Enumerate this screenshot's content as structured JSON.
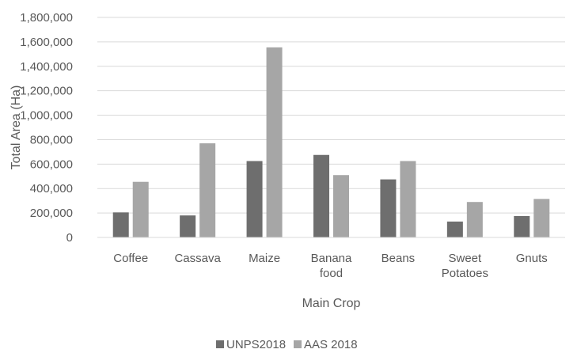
{
  "chart_data": {
    "type": "bar",
    "xlabel": "Main Crop",
    "ylabel": "Total Area (Ha)",
    "ylim": [
      0,
      1800000
    ],
    "ytick_step": 200000,
    "grid": true,
    "legend_position": "bottom",
    "categories": [
      [
        "Coffee"
      ],
      [
        "Cassava"
      ],
      [
        "Maize"
      ],
      [
        "Banana",
        "food"
      ],
      [
        "Beans"
      ],
      [
        "Sweet",
        "Potatoes"
      ],
      [
        "Gnuts"
      ]
    ],
    "series": [
      {
        "name": "UNPS2018",
        "color": "#6e6e6e",
        "values": [
          205000,
          180000,
          625000,
          675000,
          475000,
          130000,
          175000
        ]
      },
      {
        "name": "AAS 2018",
        "color": "#a6a6a6",
        "values": [
          455000,
          770000,
          1555000,
          510000,
          625000,
          290000,
          315000
        ]
      }
    ]
  }
}
